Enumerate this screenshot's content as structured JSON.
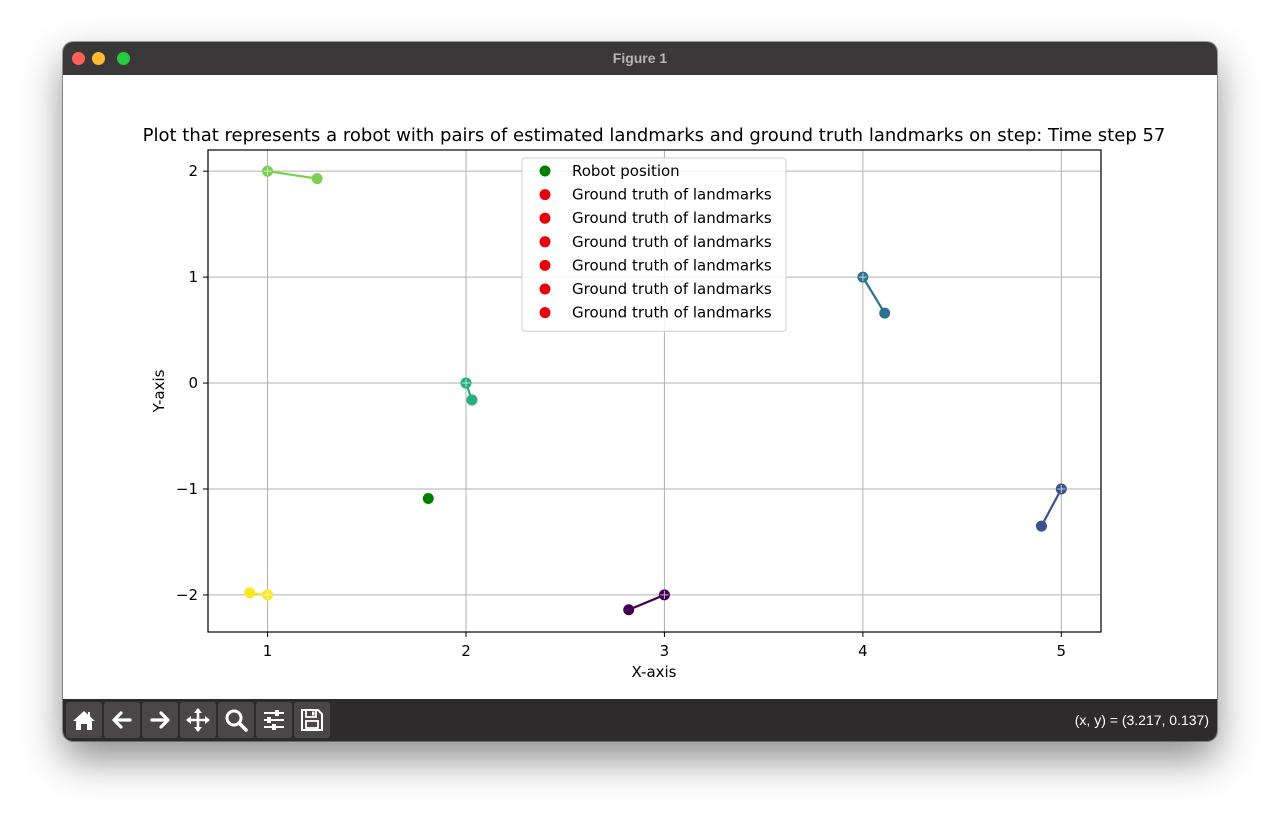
{
  "window": {
    "title": "Figure 1"
  },
  "toolbar": {
    "buttons": [
      {
        "name": "home-icon"
      },
      {
        "name": "back-arrow-icon"
      },
      {
        "name": "forward-arrow-icon"
      },
      {
        "name": "pan-icon"
      },
      {
        "name": "zoom-icon"
      },
      {
        "name": "configure-subplots-icon"
      },
      {
        "name": "save-icon"
      }
    ],
    "coords": "(x, y) = (3.217, 0.137)"
  },
  "chart_data": {
    "type": "scatter",
    "title": "Plot that represents a robot with pairs of estimated landmarks and ground truth landmarks on step: Time step 57",
    "xlabel": "X-axis",
    "ylabel": "Y-axis",
    "xlim": [
      0.7,
      5.2
    ],
    "ylim": [
      -2.35,
      2.2
    ],
    "xticks": [
      1,
      2,
      3,
      4,
      5
    ],
    "xtick_labels": [
      "1",
      "2",
      "3",
      "4",
      "5"
    ],
    "yticks": [
      2,
      1,
      0,
      -1,
      -2
    ],
    "ytick_labels": [
      "2",
      "1",
      "0",
      "−1",
      "−2"
    ],
    "grid": true,
    "legend_position": "upper-center",
    "legend": [
      {
        "label": "Robot position",
        "color": "#008000"
      },
      {
        "label": "Ground truth of landmarks",
        "color": "#e8000b"
      },
      {
        "label": "Ground truth of landmarks",
        "color": "#e8000b"
      },
      {
        "label": "Ground truth of landmarks",
        "color": "#e8000b"
      },
      {
        "label": "Ground truth of landmarks",
        "color": "#e8000b"
      },
      {
        "label": "Ground truth of landmarks",
        "color": "#e8000b"
      },
      {
        "label": "Ground truth of landmarks",
        "color": "#e8000b"
      }
    ],
    "robot": {
      "x": 1.81,
      "y": -1.09,
      "color": "#008000"
    },
    "landmark_pairs": [
      {
        "truth": [
          3,
          -2
        ],
        "estimate": [
          2.82,
          -2.14
        ],
        "color": "#440154"
      },
      {
        "truth": [
          5,
          -1
        ],
        "estimate": [
          4.9,
          -1.35
        ],
        "color": "#3b528b"
      },
      {
        "truth": [
          4,
          1
        ],
        "estimate": [
          4.11,
          0.66
        ],
        "color": "#2c728e"
      },
      {
        "truth": [
          2,
          0
        ],
        "estimate": [
          2.03,
          -0.16
        ],
        "color": "#27ad81"
      },
      {
        "truth": [
          1,
          2
        ],
        "estimate": [
          1.25,
          1.93
        ],
        "color": "#7ad151"
      },
      {
        "truth": [
          1,
          -2
        ],
        "estimate": [
          0.91,
          -1.98
        ],
        "color": "#fde725"
      }
    ]
  }
}
